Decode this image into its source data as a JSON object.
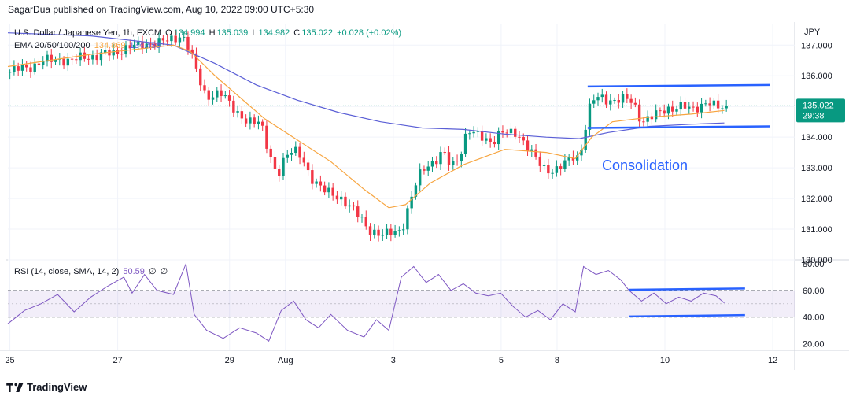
{
  "header": {
    "byline": "SagarDua published on TradingView.com, Aug 10, 2022 09:00 UTC+5:30"
  },
  "legend": {
    "symbol": "U.S. Dollar / Japanese Yen, 1h, FXCM",
    "o_label": "O",
    "o": "134.994",
    "h_label": "H",
    "h": "135.039",
    "l_label": "L",
    "l": "134.982",
    "c_label": "C",
    "c": "135.022",
    "change": "+0.028 (+0.02%)",
    "ema_label": "EMA 20/50/100/200",
    "ema_20": "134.869",
    "ema_50": "134.458"
  },
  "rsi_legend": {
    "label": "RSI (14, close, SMA, 14, 2)",
    "value": "50.59",
    "n1": "∅",
    "n2": "∅"
  },
  "price_axis": {
    "currency": "JPY",
    "ticks": [
      "137.000",
      "136.000",
      "135.000",
      "134.000",
      "133.000",
      "132.000",
      "131.000",
      "130.000"
    ],
    "last_price": "135.022",
    "countdown": "29:38"
  },
  "rsi_axis": {
    "ticks": [
      "80.00",
      "60.00",
      "40.00",
      "20.00"
    ]
  },
  "time_axis": {
    "ticks": [
      "25",
      "27",
      "29",
      "Aug",
      "3",
      "5",
      "8",
      "10",
      "12"
    ]
  },
  "annotation": {
    "text": "Consolidation"
  },
  "footer": {
    "brand": "TradingView"
  },
  "colors": {
    "up": "#089981",
    "down": "#f23645",
    "ema20": "#f7a540",
    "ema50": "#5b5fd6",
    "rsi": "#7e57c2",
    "annotation": "#2962ff",
    "channel": "#2962ff"
  },
  "chart_data": [
    {
      "type": "candlestick",
      "title": "U.S. Dollar / Japanese Yen, 1h, FXCM",
      "ylabel": "JPY",
      "ylim": [
        130.0,
        137.7
      ],
      "x_ticks": [
        "25",
        "27",
        "29",
        "Aug",
        "3",
        "5",
        "8",
        "10",
        "12"
      ],
      "price_path": [
        [
          0,
          136.1
        ],
        [
          3,
          136.25
        ],
        [
          6,
          136.3
        ],
        [
          9,
          136.5
        ],
        [
          12,
          136.55
        ],
        [
          15,
          136.45
        ],
        [
          18,
          136.65
        ],
        [
          21,
          136.6
        ],
        [
          24,
          136.75
        ],
        [
          27,
          136.8
        ],
        [
          30,
          136.95
        ],
        [
          33,
          137.05
        ],
        [
          36,
          137.05
        ],
        [
          39,
          137.2
        ],
        [
          42,
          137.3
        ],
        [
          44,
          136.8
        ],
        [
          46,
          136.0
        ],
        [
          48,
          135.3
        ],
        [
          50,
          135.35
        ],
        [
          52,
          135.4
        ],
        [
          55,
          134.9
        ],
        [
          57,
          134.5
        ],
        [
          59,
          134.45
        ],
        [
          61,
          134.6
        ],
        [
          63,
          133.5
        ],
        [
          64,
          133.1
        ],
        [
          65,
          132.6
        ],
        [
          67,
          133.4
        ],
        [
          69,
          133.7
        ],
        [
          71,
          133.3
        ],
        [
          73,
          132.6
        ],
        [
          75,
          132.5
        ],
        [
          77,
          132.3
        ],
        [
          79,
          132.0
        ],
        [
          81,
          131.9
        ],
        [
          83,
          131.8
        ],
        [
          85,
          131.4
        ],
        [
          87,
          130.9
        ],
        [
          89,
          130.9
        ],
        [
          91,
          130.9
        ],
        [
          93,
          130.85
        ],
        [
          95,
          130.9
        ],
        [
          97,
          131.9
        ],
        [
          99,
          132.7
        ],
        [
          101,
          133.0
        ],
        [
          103,
          133.2
        ],
        [
          105,
          133.6
        ],
        [
          107,
          133.0
        ],
        [
          109,
          133.3
        ],
        [
          111,
          134.3
        ],
        [
          113,
          134.1
        ],
        [
          115,
          133.9
        ],
        [
          117,
          133.85
        ],
        [
          119,
          134.2
        ],
        [
          121,
          134.1
        ],
        [
          123,
          134.1
        ],
        [
          125,
          133.8
        ],
        [
          127,
          133.4
        ],
        [
          129,
          133.0
        ],
        [
          131,
          132.9
        ],
        [
          133,
          133.0
        ],
        [
          135,
          133.2
        ],
        [
          137,
          133.4
        ],
        [
          138,
          133.3
        ],
        [
          139,
          134.0
        ],
        [
          140,
          134.7
        ],
        [
          141,
          135.2
        ],
        [
          143,
          135.3
        ],
        [
          145,
          135.2
        ],
        [
          147,
          135.2
        ],
        [
          149,
          135.25
        ],
        [
          151,
          135.15
        ],
        [
          153,
          134.5
        ],
        [
          155,
          134.6
        ],
        [
          157,
          134.8
        ],
        [
          159,
          134.95
        ],
        [
          161,
          134.9
        ],
        [
          163,
          135.0
        ],
        [
          165,
          134.95
        ],
        [
          167,
          135.0
        ],
        [
          169,
          135.1
        ],
        [
          171,
          135.0
        ],
        [
          173,
          135.02
        ]
      ],
      "ema20": [
        [
          0,
          136.3
        ],
        [
          20,
          136.7
        ],
        [
          40,
          137.0
        ],
        [
          44,
          136.8
        ],
        [
          50,
          136.0
        ],
        [
          56,
          135.3
        ],
        [
          62,
          134.6
        ],
        [
          70,
          133.9
        ],
        [
          78,
          133.2
        ],
        [
          86,
          132.3
        ],
        [
          92,
          131.7
        ],
        [
          96,
          131.8
        ],
        [
          102,
          132.5
        ],
        [
          110,
          133.1
        ],
        [
          120,
          133.6
        ],
        [
          130,
          133.5
        ],
        [
          137,
          133.3
        ],
        [
          141,
          134.0
        ],
        [
          146,
          134.5
        ],
        [
          155,
          134.65
        ],
        [
          165,
          134.75
        ],
        [
          173,
          134.87
        ]
      ],
      "ema50": [
        [
          0,
          137.4
        ],
        [
          20,
          137.3
        ],
        [
          40,
          137.0
        ],
        [
          50,
          136.4
        ],
        [
          60,
          135.7
        ],
        [
          70,
          135.2
        ],
        [
          80,
          134.8
        ],
        [
          90,
          134.5
        ],
        [
          100,
          134.3
        ],
        [
          110,
          134.25
        ],
        [
          120,
          134.1
        ],
        [
          130,
          134.0
        ],
        [
          138,
          133.95
        ],
        [
          145,
          134.15
        ],
        [
          155,
          134.35
        ],
        [
          165,
          134.42
        ],
        [
          173,
          134.46
        ]
      ],
      "channel": {
        "upper": [
          [
            140,
            135.65
          ],
          [
            184,
            135.7
          ]
        ],
        "lower": [
          [
            140,
            134.3
          ],
          [
            184,
            134.35
          ]
        ]
      }
    },
    {
      "type": "line",
      "title": "RSI (14, close, SMA, 14, 2)",
      "ylim": [
        15,
        83
      ],
      "bands": [
        40,
        60
      ],
      "y_ticks": [
        80,
        60,
        40,
        20
      ],
      "values": [
        [
          0,
          35
        ],
        [
          4,
          45
        ],
        [
          8,
          50
        ],
        [
          12,
          57
        ],
        [
          16,
          44
        ],
        [
          20,
          55
        ],
        [
          24,
          63
        ],
        [
          28,
          70
        ],
        [
          30,
          58
        ],
        [
          33,
          72
        ],
        [
          36,
          60
        ],
        [
          40,
          57
        ],
        [
          43,
          80
        ],
        [
          45,
          42
        ],
        [
          48,
          30
        ],
        [
          52,
          24
        ],
        [
          56,
          32
        ],
        [
          60,
          28
        ],
        [
          63,
          22
        ],
        [
          66,
          45
        ],
        [
          69,
          52
        ],
        [
          72,
          38
        ],
        [
          75,
          32
        ],
        [
          78,
          42
        ],
        [
          82,
          30
        ],
        [
          86,
          25
        ],
        [
          89,
          38
        ],
        [
          92,
          30
        ],
        [
          95,
          70
        ],
        [
          98,
          78
        ],
        [
          101,
          66
        ],
        [
          104,
          72
        ],
        [
          107,
          60
        ],
        [
          110,
          65
        ],
        [
          113,
          58
        ],
        [
          116,
          56
        ],
        [
          119,
          58
        ],
        [
          122,
          48
        ],
        [
          125,
          40
        ],
        [
          128,
          45
        ],
        [
          131,
          38
        ],
        [
          134,
          50
        ],
        [
          137,
          44
        ],
        [
          139,
          78
        ],
        [
          142,
          72
        ],
        [
          145,
          75
        ],
        [
          148,
          68
        ],
        [
          150,
          60
        ],
        [
          153,
          52
        ],
        [
          156,
          58
        ],
        [
          159,
          50
        ],
        [
          162,
          55
        ],
        [
          165,
          52
        ],
        [
          168,
          58
        ],
        [
          171,
          56
        ],
        [
          173,
          50.59
        ]
      ],
      "channel": {
        "upper": [
          [
            150,
            60.5
          ],
          [
            178,
            61.5
          ]
        ],
        "lower": [
          [
            150,
            40.5
          ],
          [
            178,
            41.5
          ]
        ]
      }
    }
  ]
}
